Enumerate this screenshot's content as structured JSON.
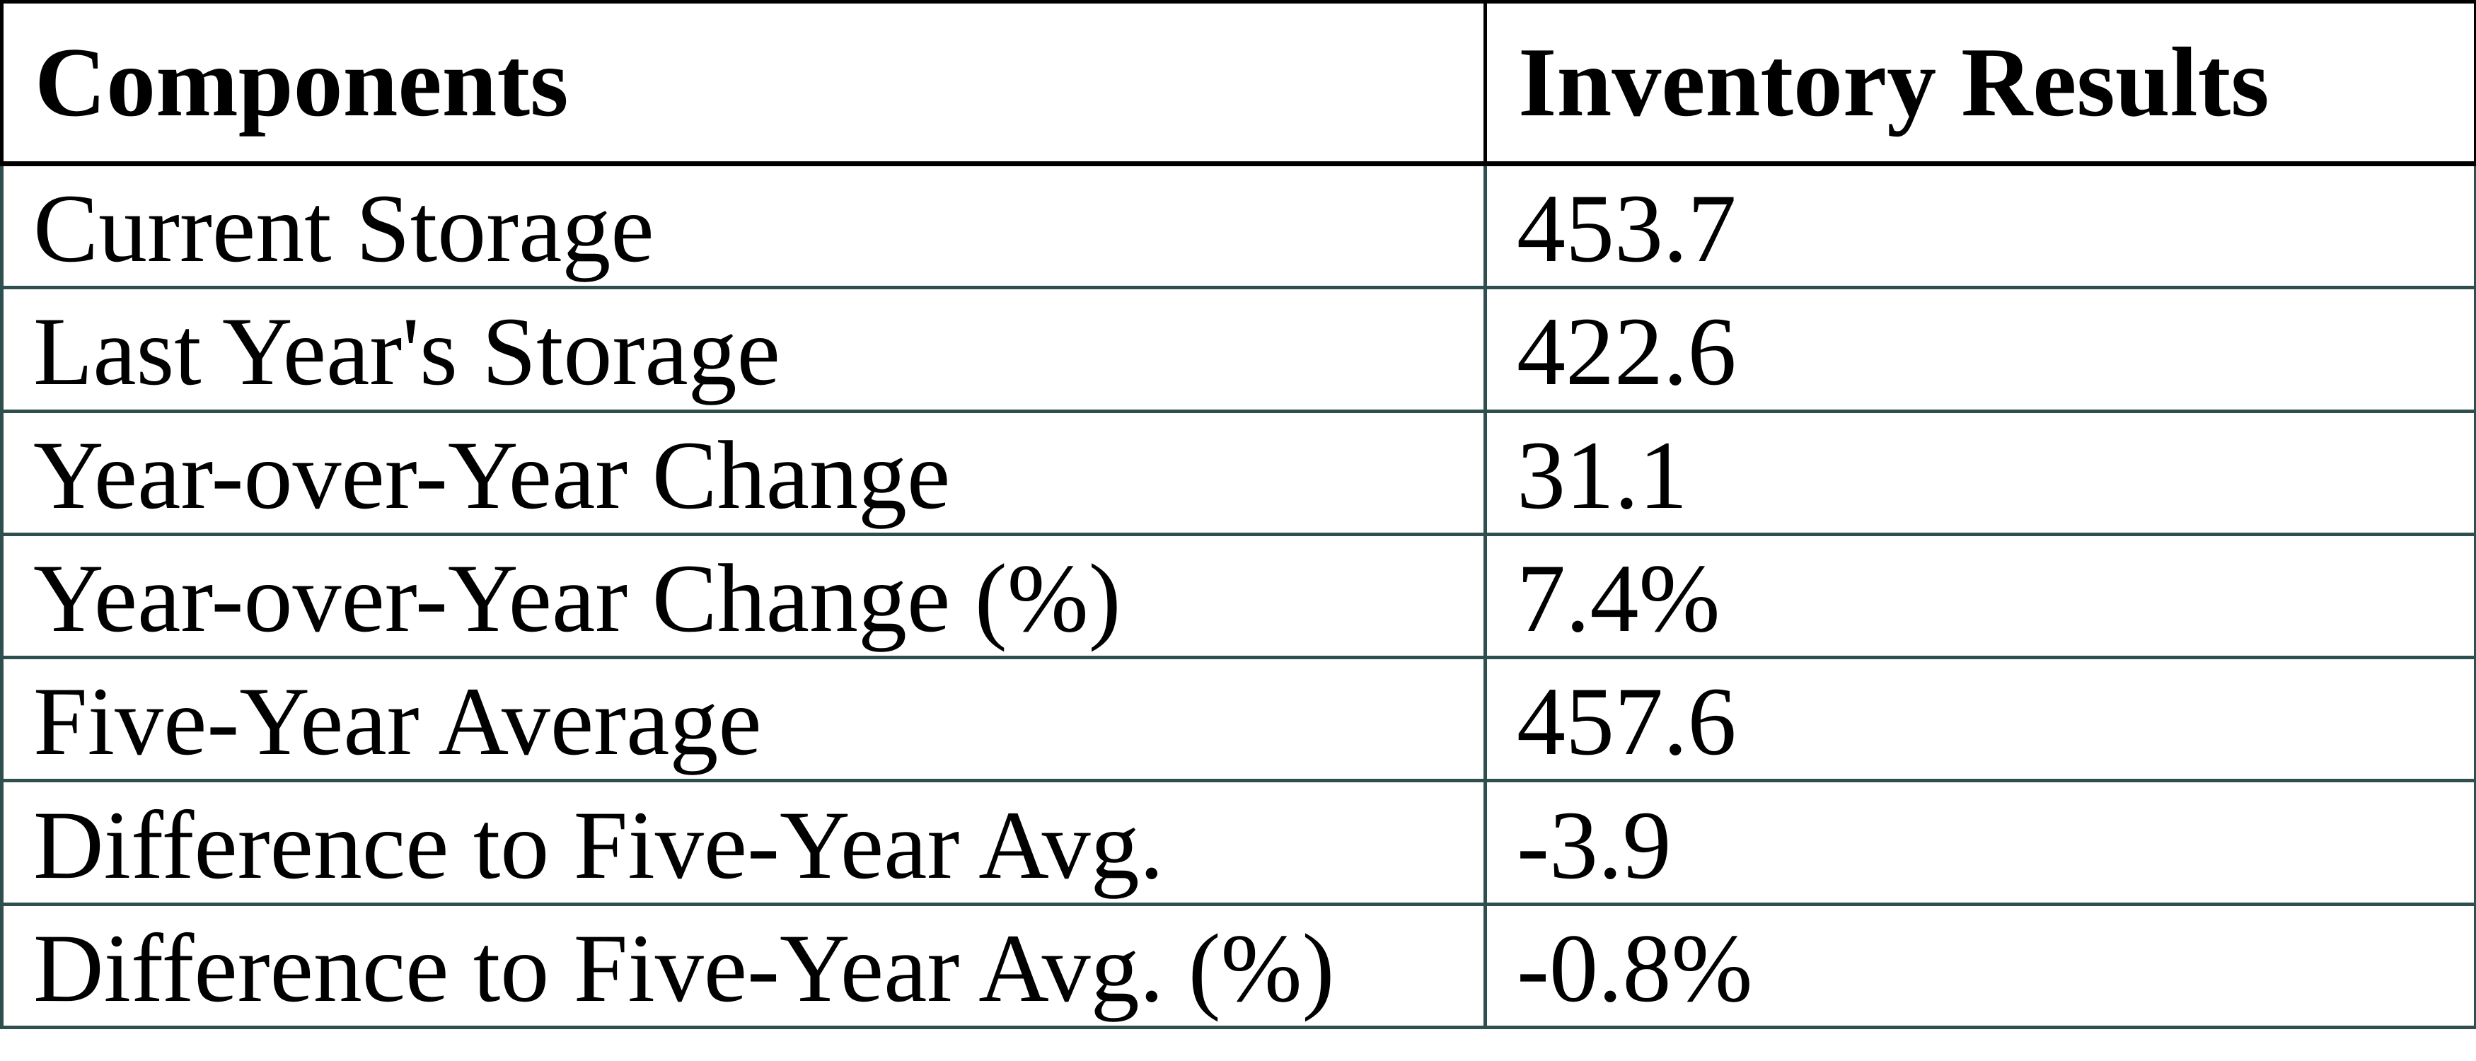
{
  "table": {
    "columns": [
      {
        "label": "Components"
      },
      {
        "label": "Inventory Results"
      }
    ],
    "rows": [
      {
        "component": "Current Storage",
        "value": "453.7"
      },
      {
        "component": "Last Year's Storage",
        "value": "422.6"
      },
      {
        "component": "Year-over-Year Change",
        "value": "31.1"
      },
      {
        "component": "Year-over-Year Change (%)",
        "value": "7.4%"
      },
      {
        "component": "Five-Year Average",
        "value": "457.6"
      },
      {
        "component": "Difference to Five-Year Avg.",
        "value": "-3.9"
      },
      {
        "component": "Difference to Five-Year Avg. (%)",
        "value": "-0.8%"
      }
    ],
    "style": {
      "header_border_color": "#000000",
      "body_border_color": "#2F4F4F",
      "text_color": "#000000",
      "background_color": "#ffffff"
    }
  }
}
